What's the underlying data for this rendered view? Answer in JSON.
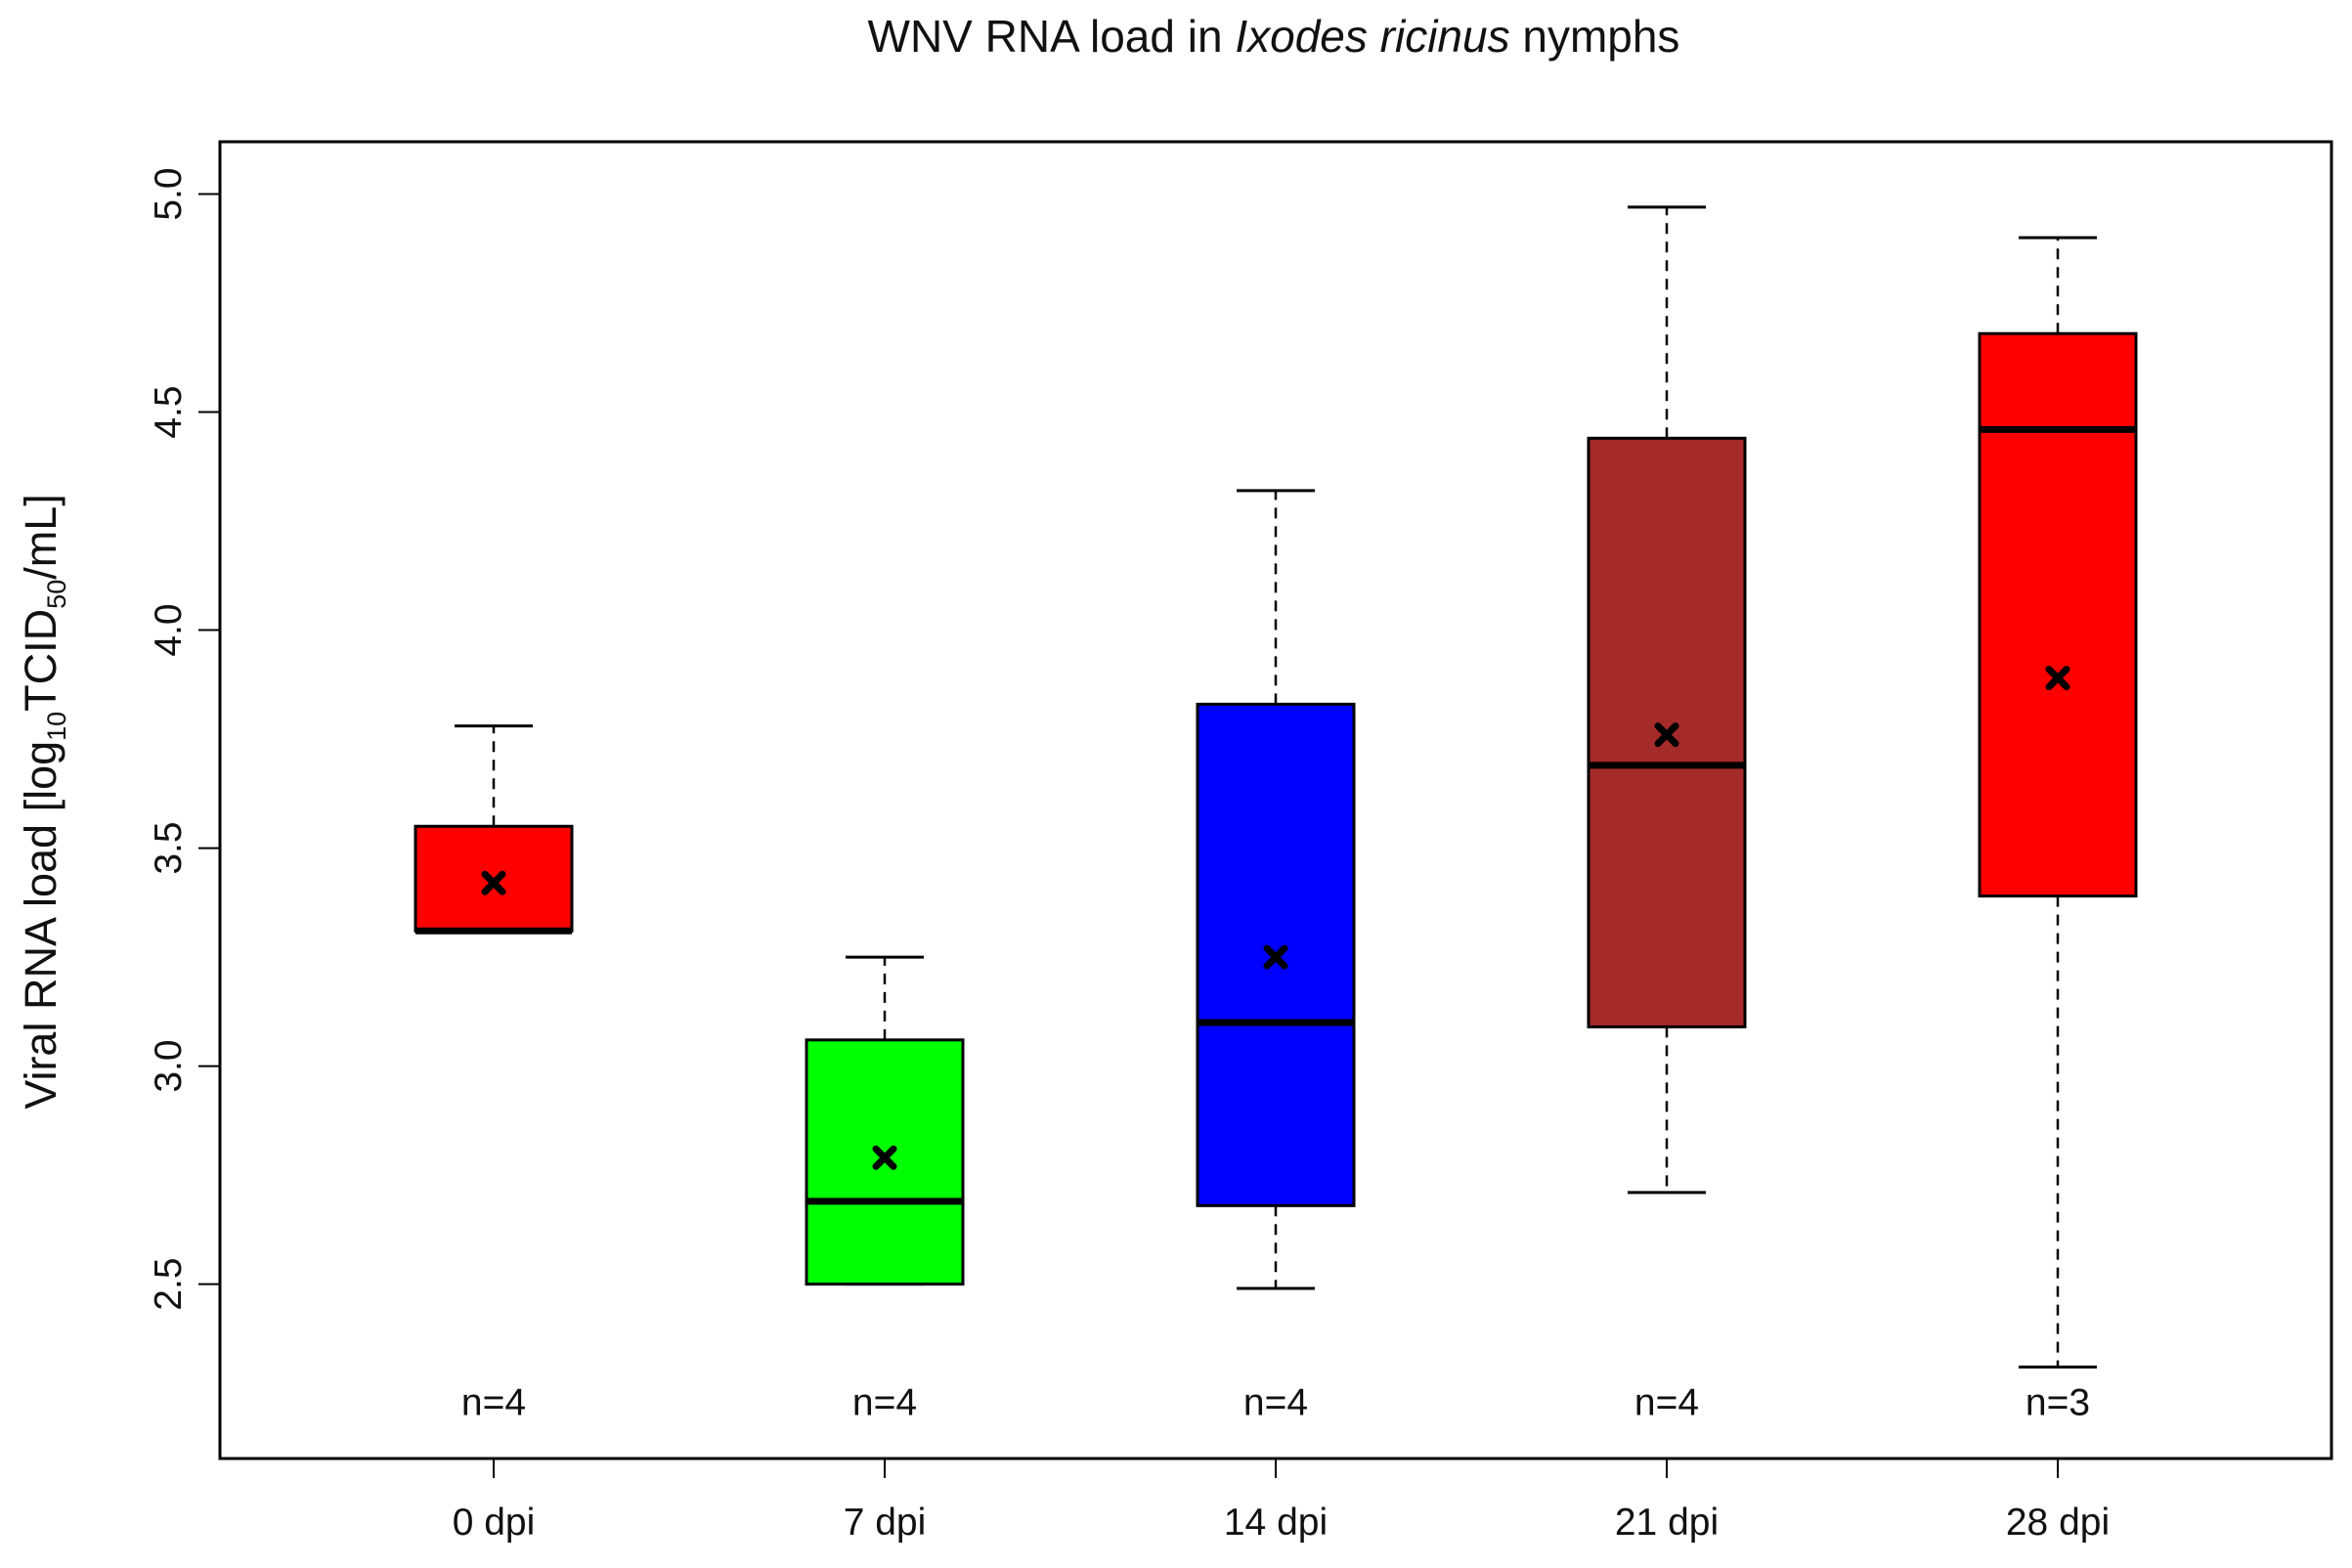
{
  "chart_data": {
    "type": "boxplot",
    "title": {
      "prefix": "WNV RNA load in ",
      "species": "Ixodes ricinus",
      "suffix": " nymphs"
    },
    "ylabel": {
      "prefix": "Viral RNA load [log",
      "sub1": "10",
      "mid": "TCID",
      "sub2": "50",
      "suffix": "/mL]"
    },
    "xlabel": "",
    "ylim": [
      2.1,
      5.12
    ],
    "yticks": [
      2.5,
      3.0,
      3.5,
      4.0,
      4.5,
      5.0
    ],
    "ytick_labels": [
      "2.5",
      "3.0",
      "3.5",
      "4.0",
      "4.5",
      "5.0"
    ],
    "n_label_y": 2.2,
    "categories": [
      "0 dpi",
      "7 dpi",
      "14 dpi",
      "21 dpi",
      "28 dpi"
    ],
    "groups": [
      {
        "label": "0 dpi",
        "n": "n=4",
        "color": "#ff0000",
        "whisker_low": 3.31,
        "q1": 3.31,
        "median": 3.31,
        "q3": 3.55,
        "whisker_high": 3.78,
        "mean": 3.42
      },
      {
        "label": "7 dpi",
        "n": "n=4",
        "color": "#00ff00",
        "whisker_low": 2.5,
        "q1": 2.5,
        "median": 2.69,
        "q3": 3.06,
        "whisker_high": 3.25,
        "mean": 2.79
      },
      {
        "label": "14 dpi",
        "n": "n=4",
        "color": "#0000ff",
        "whisker_low": 2.49,
        "q1": 2.68,
        "median": 3.1,
        "q3": 3.83,
        "whisker_high": 4.32,
        "mean": 3.25
      },
      {
        "label": "21 dpi",
        "n": "n=4",
        "color": "#a52a2a",
        "whisker_low": 2.71,
        "q1": 3.09,
        "median": 3.69,
        "q3": 4.44,
        "whisker_high": 4.97,
        "mean": 3.76
      },
      {
        "label": "28 dpi",
        "n": "n=3",
        "color": "#ff0000",
        "whisker_low": 2.31,
        "q1": 3.39,
        "median": 4.46,
        "q3": 4.68,
        "whisker_high": 4.9,
        "mean": 3.89
      }
    ]
  }
}
